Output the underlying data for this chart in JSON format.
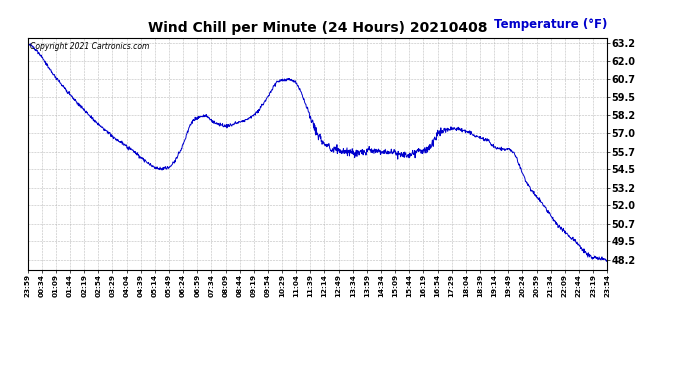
{
  "title": "Wind Chill per Minute (24 Hours) 20210408",
  "ylabel": "Temperature (°F)",
  "copyright_text": "Copyright 2021 Cartronics.com",
  "line_color": "#0000cc",
  "ylabel_color": "#0000cc",
  "background_color": "#ffffff",
  "grid_color": "#aaaaaa",
  "yticks": [
    48.2,
    49.5,
    50.7,
    52.0,
    53.2,
    54.5,
    55.7,
    57.0,
    58.2,
    59.5,
    60.7,
    62.0,
    63.2
  ],
  "ylim": [
    47.5,
    63.6
  ],
  "xtick_labels": [
    "23:59",
    "00:34",
    "01:09",
    "01:44",
    "02:19",
    "02:54",
    "03:29",
    "04:04",
    "04:39",
    "05:14",
    "05:49",
    "06:24",
    "06:59",
    "07:34",
    "08:09",
    "08:44",
    "09:19",
    "09:54",
    "10:29",
    "11:04",
    "11:39",
    "12:14",
    "12:49",
    "13:34",
    "13:59",
    "14:34",
    "15:09",
    "15:44",
    "16:19",
    "16:54",
    "17:29",
    "18:04",
    "18:39",
    "19:14",
    "19:49",
    "20:24",
    "20:59",
    "21:34",
    "22:09",
    "22:44",
    "23:19",
    "23:54"
  ]
}
